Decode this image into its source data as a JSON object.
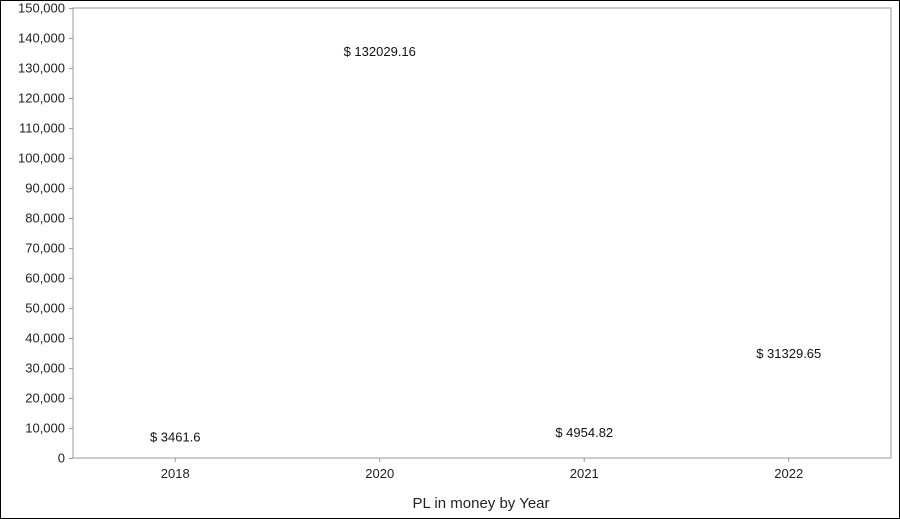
{
  "chart_data": {
    "type": "bar",
    "title": "",
    "xlabel": "PL in money by Year",
    "ylabel": "",
    "categories": [
      "2018",
      "2020",
      "2021",
      "2022"
    ],
    "values": [
      3461.6,
      132029.16,
      4954.82,
      31329.65
    ],
    "data_labels": [
      "$ 3461.6",
      "$ 132029.16",
      "$ 4954.82",
      "$ 31329.65"
    ],
    "ylim": [
      0,
      150000
    ],
    "yticks": [
      0,
      10000,
      20000,
      30000,
      40000,
      50000,
      60000,
      70000,
      80000,
      90000,
      100000,
      110000,
      120000,
      130000,
      140000,
      150000
    ],
    "ytick_labels": [
      "0",
      "10,000",
      "20,000",
      "30,000",
      "40,000",
      "50,000",
      "60,000",
      "70,000",
      "80,000",
      "90,000",
      "100,000",
      "110,000",
      "120,000",
      "130,000",
      "140,000",
      "150,000"
    ],
    "grid": true,
    "legend": "none",
    "colors": {
      "bar": "#3ee83e",
      "grid": "#d9d9d9",
      "axis": "#9a9a9a"
    }
  }
}
